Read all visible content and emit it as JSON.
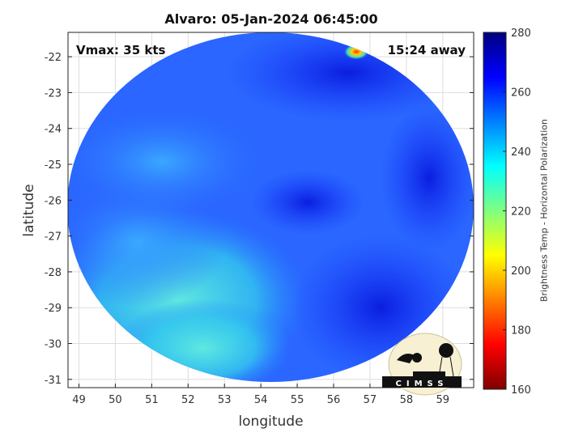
{
  "title": "Alvaro: 05-Jan-2024 06:45:00",
  "annotations": {
    "vmax": "Vmax: 35 kts",
    "away": "15:24 away"
  },
  "axes": {
    "xlabel": "longitude",
    "ylabel": "latitude",
    "xlim": [
      48.7,
      59.85
    ],
    "ylim": [
      -31.23,
      -21.32
    ],
    "xticks": [
      49,
      50,
      51,
      52,
      53,
      54,
      55,
      56,
      57,
      58,
      59
    ],
    "yticks": [
      -22,
      -23,
      -24,
      -25,
      -26,
      -27,
      -28,
      -29,
      -30,
      -31
    ],
    "grid": true
  },
  "colorbar": {
    "label": "Brightness Temp - Horizontal Polarization",
    "range": [
      160,
      280
    ],
    "ticks": [
      280,
      260,
      240,
      220,
      200,
      180,
      160
    ],
    "colormap": "jet",
    "colors": [
      "#00007f",
      "#0000ff",
      "#00ffff",
      "#ffff00",
      "#ff0000",
      "#7f0000"
    ]
  },
  "logo": {
    "text": "CIMSS"
  }
}
